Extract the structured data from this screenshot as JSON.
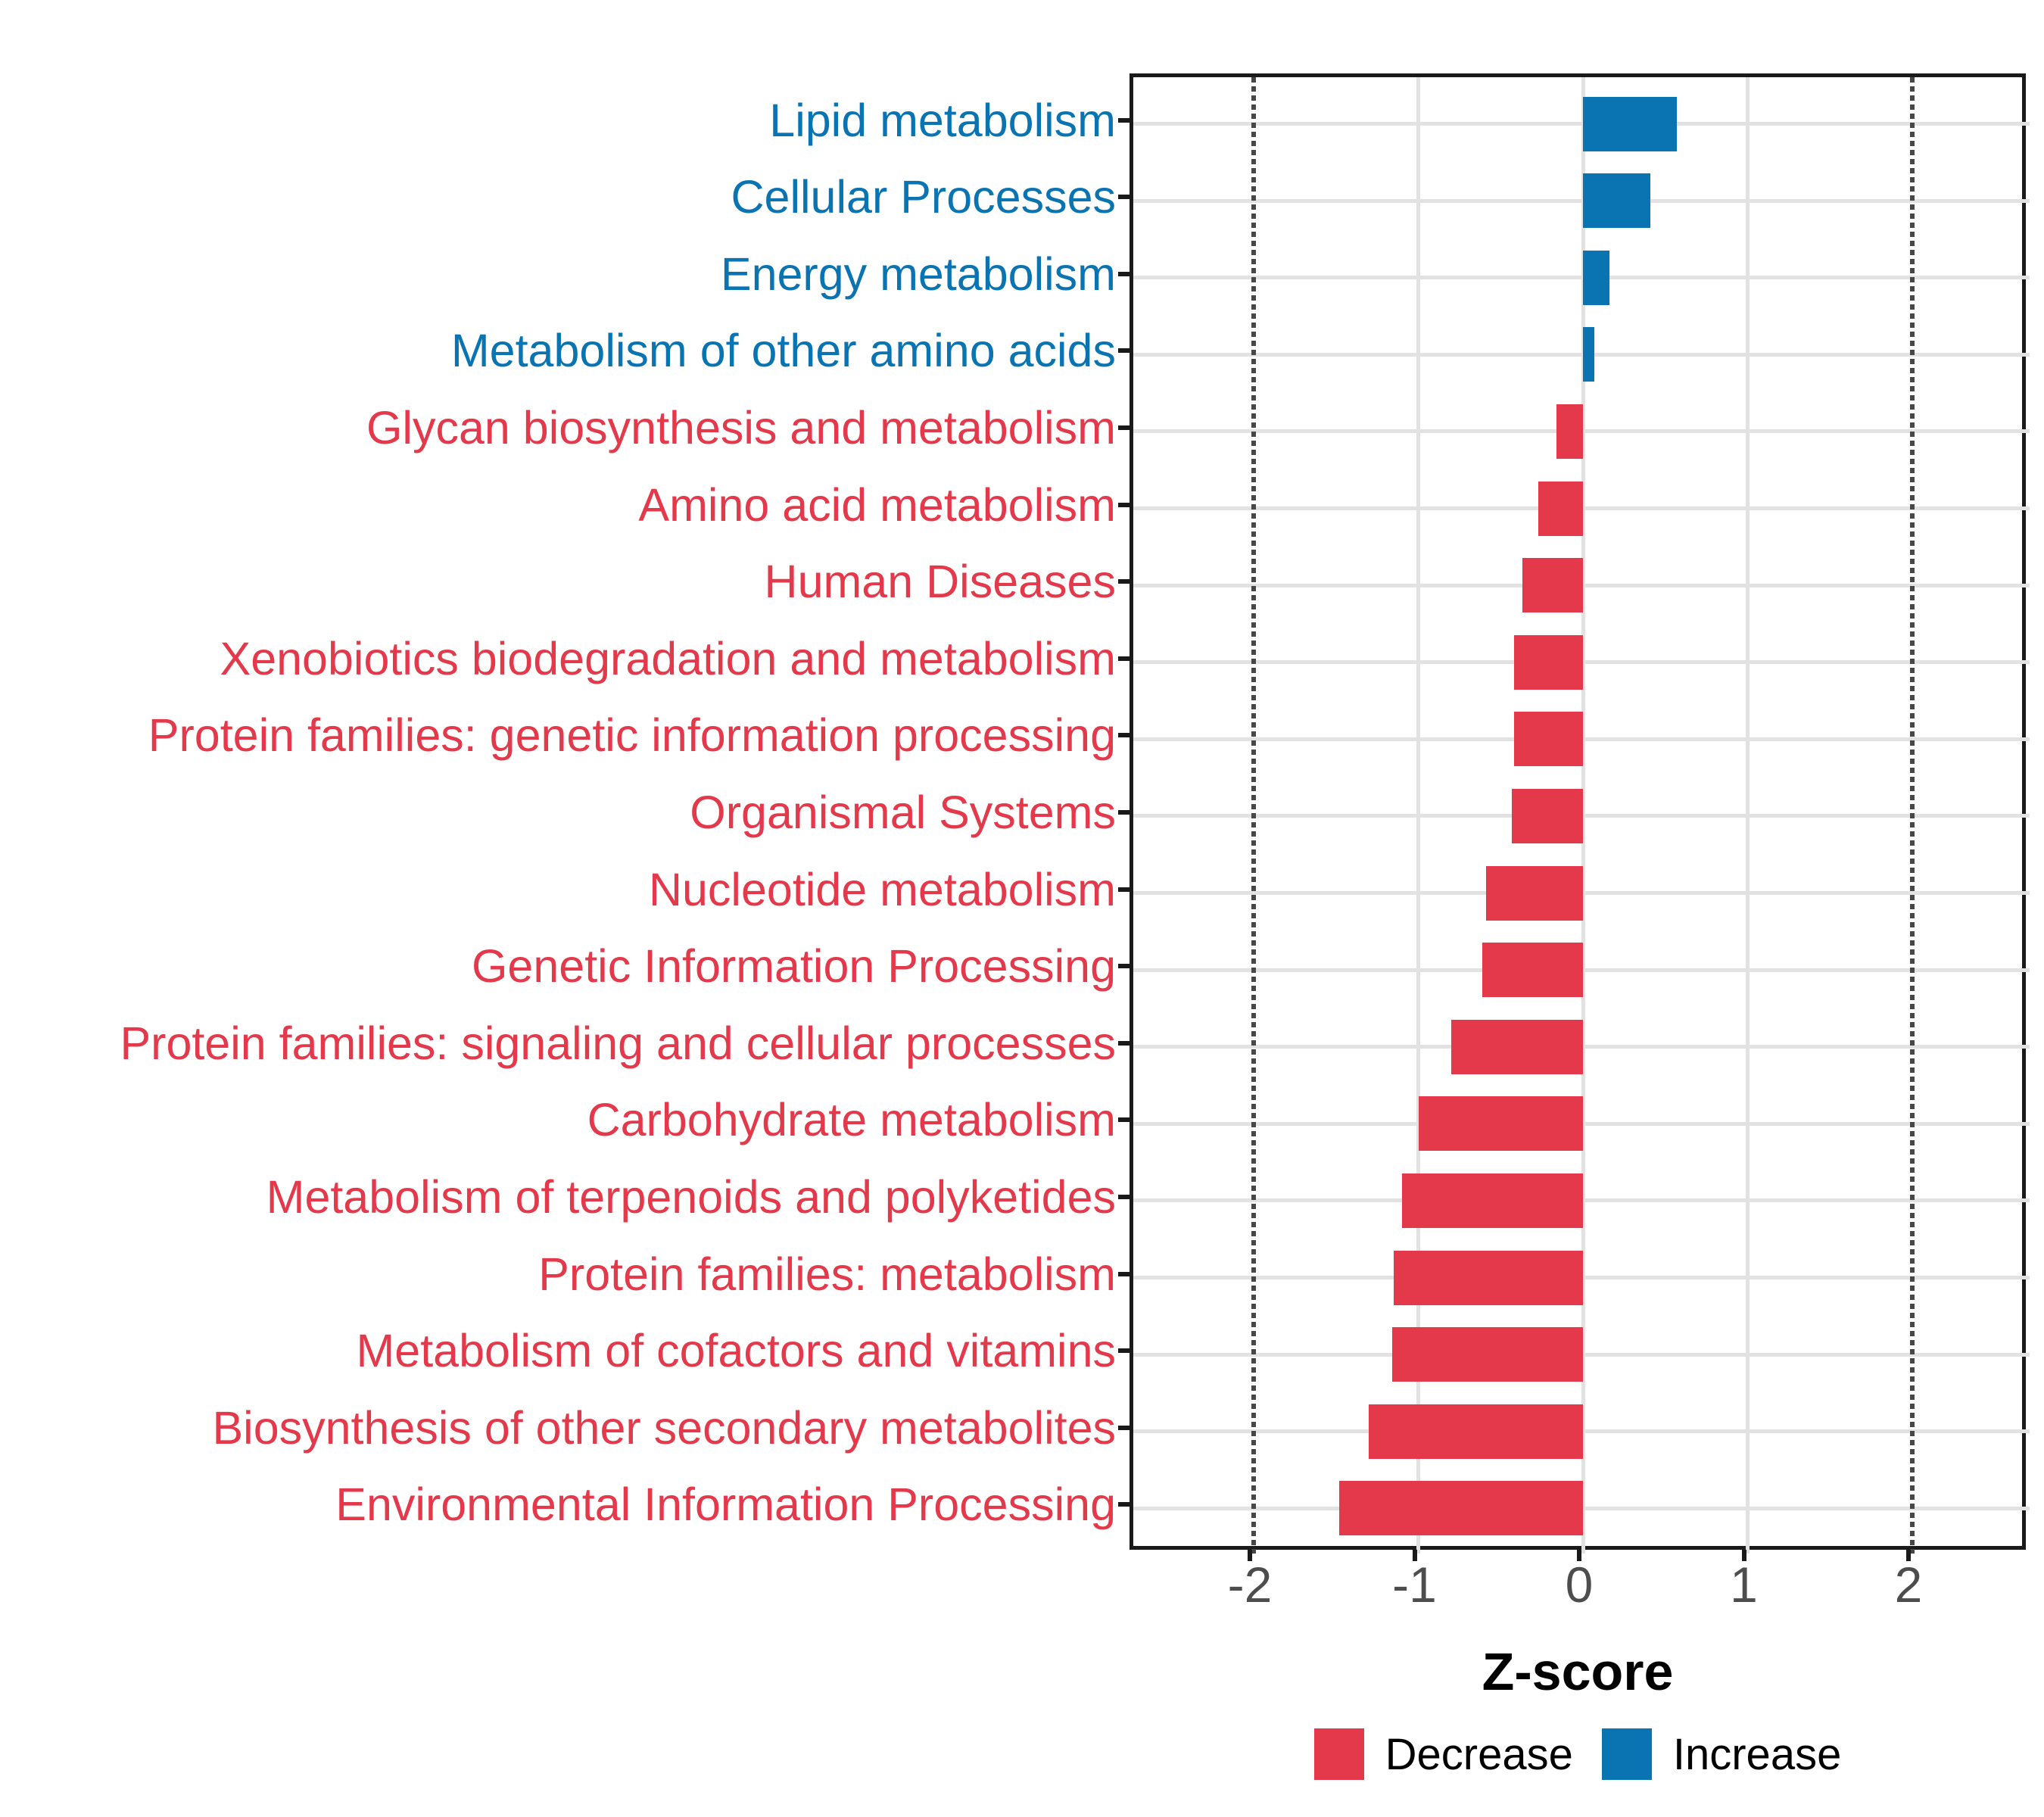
{
  "chart_data": {
    "type": "bar",
    "orientation": "horizontal",
    "title": "",
    "xlabel": "Z-score",
    "ylabel": "",
    "x_ticks": [
      -2,
      -1,
      0,
      1,
      2
    ],
    "xlim": [
      -2.73,
      2.71
    ],
    "grid": "major gridlines on, light gray",
    "reference_lines": [
      -2,
      2
    ],
    "legend_position": "bottom",
    "bars": [
      {
        "label": "Lipid metabolism",
        "value": 0.57,
        "direction": "increase"
      },
      {
        "label": "Cellular Processes",
        "value": 0.41,
        "direction": "increase"
      },
      {
        "label": "Energy metabolism",
        "value": 0.16,
        "direction": "increase"
      },
      {
        "label": "Metabolism of other amino acids",
        "value": 0.07,
        "direction": "increase"
      },
      {
        "label": "Glycan biosynthesis and metabolism",
        "value": -0.16,
        "direction": "decrease"
      },
      {
        "label": "Amino acid metabolism",
        "value": -0.27,
        "direction": "decrease"
      },
      {
        "label": "Human Diseases",
        "value": -0.37,
        "direction": "decrease"
      },
      {
        "label": "Xenobiotics biodegradation and metabolism",
        "value": -0.42,
        "direction": "decrease"
      },
      {
        "label": "Protein families: genetic information processing",
        "value": -0.42,
        "direction": "decrease"
      },
      {
        "label": "Organismal Systems",
        "value": -0.43,
        "direction": "decrease"
      },
      {
        "label": "Nucleotide metabolism",
        "value": -0.59,
        "direction": "decrease"
      },
      {
        "label": "Genetic Information Processing",
        "value": -0.61,
        "direction": "decrease"
      },
      {
        "label": "Protein families: signaling and cellular processes",
        "value": -0.8,
        "direction": "decrease"
      },
      {
        "label": "Carbohydrate metabolism",
        "value": -1.0,
        "direction": "decrease"
      },
      {
        "label": "Metabolism of terpenoids and polyketides",
        "value": -1.1,
        "direction": "decrease"
      },
      {
        "label": "Protein families: metabolism",
        "value": -1.15,
        "direction": "decrease"
      },
      {
        "label": "Metabolism of cofactors and vitamins",
        "value": -1.16,
        "direction": "decrease"
      },
      {
        "label": "Biosynthesis of other secondary metabolites",
        "value": -1.3,
        "direction": "decrease"
      },
      {
        "label": "Environmental Information Processing",
        "value": -1.48,
        "direction": "decrease"
      }
    ],
    "legend": {
      "items": [
        {
          "label": "Decrease",
          "color": "#E4394B"
        },
        {
          "label": "Increase",
          "color": "#0A74B3"
        }
      ]
    },
    "style": {
      "bar_decrease": "#E4394B",
      "bar_increase": "#0A74B3",
      "label_decrease": "#E4394B",
      "label_increase": "#0A74B3",
      "grid_color": "#E2E2E2",
      "reference_line_color": "#474747",
      "axis_text_color": "#4D4D4D",
      "axis_title_color": "#000000",
      "border_color": "#1A1A1A",
      "background": "#FFFFFF"
    }
  }
}
